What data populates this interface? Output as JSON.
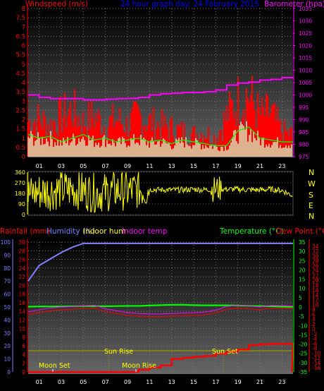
{
  "colors": {
    "wind": "#ff0000",
    "wind_avg": "#00ff00",
    "wind_light": "#ccffcc",
    "baro": "#ff00ff",
    "title": "#0000ff",
    "dir": "#ffff00",
    "rain": "#ff0000",
    "humidity": "#7f7fff",
    "indoor_hum": "#ffff00",
    "indoor_temp": "#ff00ff",
    "temperature": "#00ff00",
    "dew_point": "#ff0000",
    "sun": "#999900",
    "label": "#ffff00"
  },
  "top_panel": {
    "title": "24 hour graph day: 24 February 2015",
    "wind_label": "Windspeed (m/s)",
    "baro_label": "Barometer (hpa)"
  },
  "middle_panel": {
    "compass": [
      "N",
      "W",
      "S",
      "E",
      "N"
    ]
  },
  "bottom_panel": {
    "rain_label": "Rainfall (mm)",
    "humidity_label": "Humidity (%)",
    "indoor_hum_label": "Indoor hum",
    "indoor_temp_label": "Indoor temp",
    "temp_label": "Temperature (°C)",
    "dew_label": "Dew Point (°C)",
    "annotations": {
      "sun_rise": "Sun Rise",
      "sun_set": "Sun Set",
      "moon_set": "Moon Set",
      "moon_rise": "Moon Rise"
    }
  },
  "chart_data": [
    {
      "type": "area",
      "title": "24 hour graph day: 24 February 2015",
      "x_ticks": [
        "01",
        "03",
        "05",
        "07",
        "09",
        "11",
        "13",
        "15",
        "17",
        "19",
        "21",
        "23"
      ],
      "y_left": {
        "label": "Windspeed (m/s)",
        "ticks": [
          "0",
          "0.5",
          "1",
          "1.5",
          "2",
          "2.5",
          "3",
          "3.5",
          "4",
          "4.5",
          "5",
          "5.5",
          "6",
          "6.5",
          "7",
          "7.5",
          "8"
        ],
        "range": [
          0,
          8
        ]
      },
      "y_right": {
        "label": "Barometer (hpa)",
        "ticks": [
          "975",
          "980",
          "985",
          "990",
          "995",
          "1000",
          "1005",
          "1010",
          "1015",
          "1020",
          "1025",
          "1030",
          "1035"
        ],
        "range": [
          975,
          1035
        ]
      },
      "hours": [
        0,
        1,
        2,
        3,
        4,
        5,
        6,
        7,
        8,
        9,
        10,
        11,
        12,
        13,
        14,
        15,
        16,
        17,
        18,
        19,
        20,
        21,
        22,
        23,
        24
      ],
      "series": [
        {
          "name": "Windspeed (m/s)",
          "kind": "gust",
          "values": [
            2.2,
            2.4,
            2.0,
            2.6,
            3.0,
            2.2,
            2.6,
            2.0,
            2.4,
            2.0,
            2.6,
            2.2,
            2.0,
            1.8,
            1.6,
            1.4,
            1.6,
            1.2,
            2.6,
            3.6,
            4.0,
            2.6,
            2.8,
            1.6,
            1.4
          ]
        },
        {
          "name": "Windspeed (m/s)",
          "kind": "average",
          "values": [
            1.2,
            1.0,
            1.1,
            0.8,
            1.0,
            1.2,
            0.9,
            1.0,
            0.8,
            0.9,
            1.0,
            0.8,
            0.9,
            0.7,
            0.9,
            0.8,
            0.7,
            0.6,
            0.6,
            1.4,
            1.6,
            1.0,
            0.9,
            0.8,
            0.8
          ]
        },
        {
          "name": "Barometer (hpa)",
          "values": [
            1000,
            999,
            998.5,
            998.5,
            998.5,
            998,
            998,
            998.3,
            998.5,
            998.6,
            999,
            1000,
            1000.5,
            1000.7,
            1001,
            1001,
            1001.3,
            1002,
            1004,
            1004.8,
            1005.2,
            1006,
            1006.3,
            1007,
            1007.2
          ]
        }
      ]
    },
    {
      "type": "line",
      "y": {
        "ticks": [
          "0",
          "90",
          "180",
          "270",
          "360"
        ],
        "range": [
          0,
          360
        ]
      },
      "series": [
        {
          "name": "Wind direction",
          "values": [
            170,
            195,
            200,
            210,
            215,
            200,
            185,
            190,
            205,
            200,
            215,
            215,
            210,
            210,
            210,
            215,
            210,
            220,
            215,
            215,
            210,
            210,
            215,
            205,
            160
          ]
        }
      ]
    },
    {
      "type": "line",
      "left_axes": {
        "rain": {
          "label": "Rainfall (mm)",
          "ticks": [
            "0",
            "2",
            "4",
            "6",
            "8",
            "10",
            "12",
            "14",
            "16",
            "18",
            "20",
            "22",
            "24",
            "26",
            "28",
            "30"
          ],
          "range": [
            0,
            30
          ]
        },
        "humidity": {
          "label": "Humidity (%)",
          "ticks": [
            "0",
            "10",
            "20",
            "30",
            "40",
            "50",
            "60",
            "70",
            "80",
            "90",
            "100"
          ],
          "range": [
            0,
            100
          ]
        }
      },
      "right_axes": {
        "temperature": {
          "label": "Temperature (°C)",
          "ticks": [
            "35",
            "30",
            "25",
            "20",
            "15",
            "10",
            "5",
            "0",
            "-5",
            "-10",
            "-15",
            "-20",
            "-25",
            "-30",
            "-35"
          ],
          "range": [
            -35,
            35
          ]
        },
        "dew_point": {
          "label": "Dew Point (°C)",
          "ticks": [
            "34",
            "32",
            "30",
            "28",
            "26",
            "24",
            "22",
            "20",
            "18",
            "16",
            "14",
            "12",
            "10",
            "8",
            "6",
            "4",
            "2",
            "0",
            "-2",
            "-4",
            "-6",
            "-8",
            "-10",
            "-12",
            "-14",
            "-16"
          ]
        }
      },
      "series": [
        {
          "name": "Humidity (%)",
          "values": [
            70,
            82,
            87,
            92,
            96,
            99,
            99,
            99,
            99,
            99,
            99,
            99,
            99,
            99,
            99,
            99,
            99,
            99,
            99,
            99,
            99,
            99,
            99,
            99,
            99
          ]
        },
        {
          "name": "Temperature (°C)",
          "values": [
            0.2,
            0.3,
            0.3,
            0.3,
            0.4,
            0.5,
            0.5,
            0.4,
            0.5,
            0.6,
            0.6,
            0.8,
            1.0,
            1.2,
            1.2,
            1.0,
            0.9,
            0.9,
            0.9,
            0.8,
            0.6,
            0.5,
            0.4,
            0.2,
            0.1
          ]
        },
        {
          "name": "Dew Point (°C)",
          "values": [
            -4,
            -3,
            -2,
            -1.5,
            -1.2,
            -0.8,
            -0.5,
            -2.5,
            -3.5,
            -4.5,
            -5,
            -5.2,
            -5.2,
            -5,
            -4.8,
            -4.6,
            -4.2,
            -3.2,
            -1.2,
            -0.6,
            -1.0,
            -1.4,
            -0.6,
            -0.8,
            -1.0
          ]
        },
        {
          "name": "Rainfall (mm)",
          "values": [
            0,
            0,
            0,
            0,
            0,
            0,
            0,
            0,
            0,
            0,
            0.5,
            1.0,
            1.5,
            3.0,
            3.3,
            3.5,
            3.7,
            4.2,
            4.7,
            5.2,
            6.2,
            6.4,
            6.5,
            6.5,
            6.5
          ]
        },
        {
          "name": "Sun",
          "values": [
            1,
            1,
            1,
            1,
            1,
            1,
            1,
            1,
            1,
            1,
            1,
            1,
            1,
            1,
            1,
            1,
            1,
            1,
            1,
            1,
            1,
            1,
            1,
            1,
            1
          ]
        }
      ]
    }
  ]
}
